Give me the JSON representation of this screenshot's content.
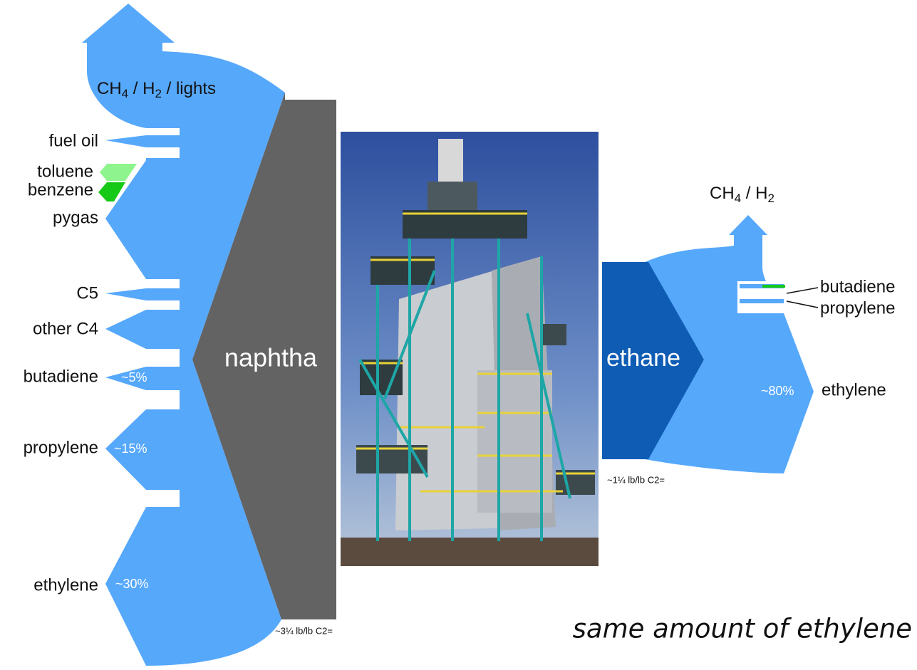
{
  "left": {
    "lights_parts": [
      "CH",
      "4",
      " / H",
      "2",
      " / lights"
    ],
    "products": [
      {
        "label": "fuel oil"
      },
      {
        "label": "toluene"
      },
      {
        "label": "benzene"
      },
      {
        "label": "pygas"
      },
      {
        "label": "C5"
      },
      {
        "label": "other C4"
      },
      {
        "label": "butadiene",
        "share": "~5%"
      },
      {
        "label": "propylene",
        "share": "~15%"
      },
      {
        "label": "ethylene",
        "share": "~30%"
      }
    ],
    "feed": "naphtha",
    "ratio": "~3¼ lb/lb C2="
  },
  "right": {
    "lights_parts": [
      "CH",
      "4",
      " / H",
      "2"
    ],
    "products": [
      {
        "label": "butadiene"
      },
      {
        "label": "propylene"
      },
      {
        "label": "ethylene",
        "share": "~80%"
      }
    ],
    "feed": "ethane",
    "ratio": "~1¼ lb/lb C2="
  },
  "caption": "same amount of ethylene"
}
